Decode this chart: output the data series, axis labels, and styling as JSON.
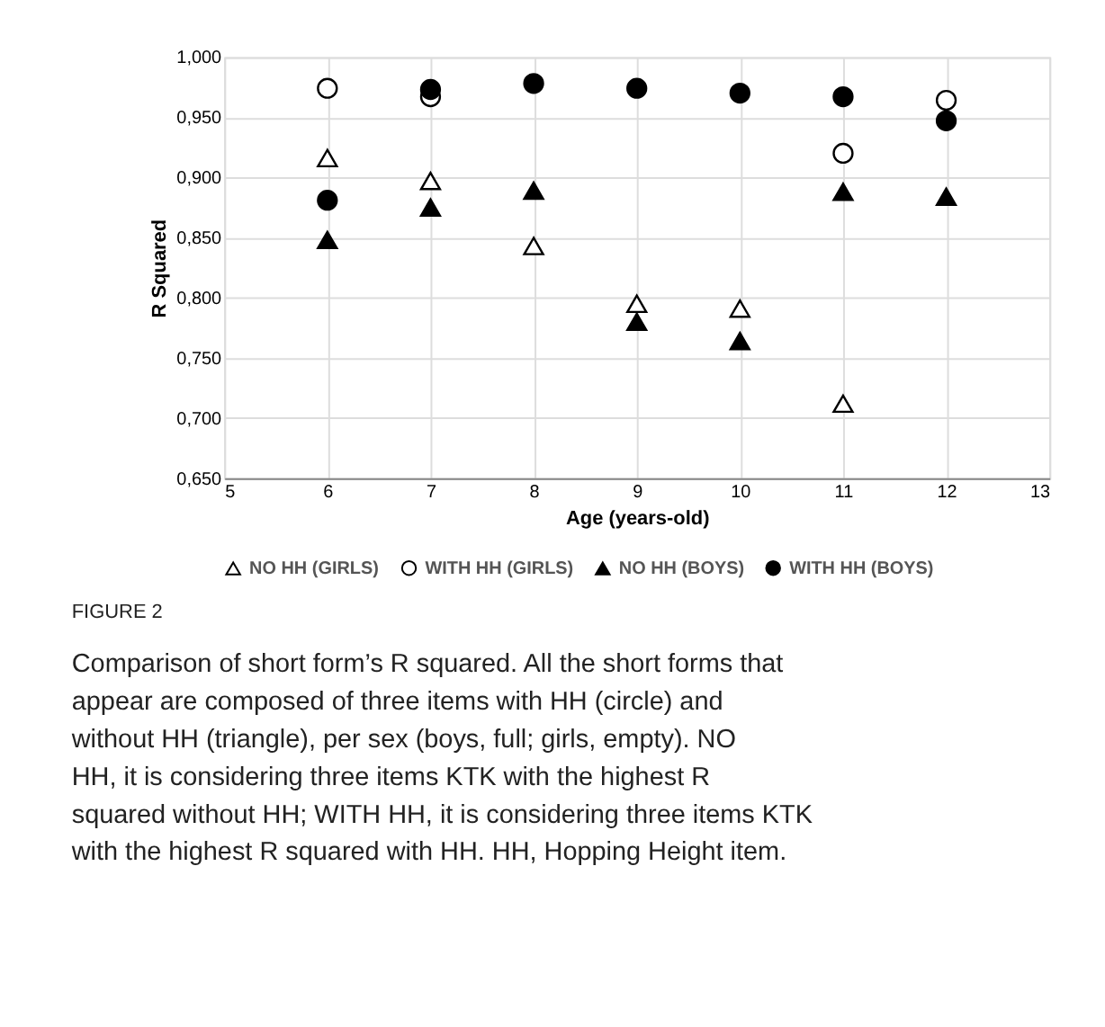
{
  "chart_data": {
    "type": "scatter",
    "xlabel": "Age (years-old)",
    "ylabel": "R Squared",
    "x": [
      6,
      7,
      8,
      9,
      10,
      11,
      12
    ],
    "series": [
      {
        "name": "NO HH (GIRLS)",
        "color": "#ffffff",
        "marker": "triangle",
        "values": [
          0.916,
          0.897,
          0.843,
          0.795,
          0.791,
          0.712,
          null
        ]
      },
      {
        "name": "WITH HH (GIRLS)",
        "color": "#ffffff",
        "marker": "circle",
        "values": [
          0.974,
          0.967,
          null,
          null,
          null,
          0.92,
          0.964
        ]
      },
      {
        "name": "NO HH (BOYS)",
        "color": "#000000",
        "marker": "triangle",
        "values": [
          0.848,
          0.875,
          0.889,
          0.78,
          0.764,
          0.888,
          0.884
        ]
      },
      {
        "name": "WITH HH (BOYS)",
        "color": "#000000",
        "marker": "circle",
        "values": [
          0.881,
          0.973,
          0.978,
          0.974,
          0.97,
          0.967,
          0.947
        ]
      }
    ],
    "xlim": [
      5,
      13
    ],
    "xticks": [
      5,
      6,
      7,
      8,
      9,
      10,
      11,
      12,
      13
    ],
    "ylim": [
      0.65,
      1.0
    ],
    "yticks": [
      {
        "value": 0.65,
        "label": "0,650"
      },
      {
        "value": 0.7,
        "label": "0,700"
      },
      {
        "value": 0.75,
        "label": "0,750"
      },
      {
        "value": 0.8,
        "label": "0,800"
      },
      {
        "value": 0.85,
        "label": "0,850"
      },
      {
        "value": 0.9,
        "label": "0,900"
      },
      {
        "value": 0.95,
        "label": "0,950"
      },
      {
        "value": 1.0,
        "label": "1,000"
      }
    ],
    "grid": true,
    "legend": "bottom",
    "annotations": [
      "FIGURE 2",
      "Comparison of short form’s R squared. All the short forms that appear are composed of three items with HH (circle) and without HH (triangle), per sex (boys, full; girls, empty). NO HH, it is considering three items KTK with the highest R squared without HH; WITH HH, it is considering three items KTK with the highest R squared with HH. HH, Hopping Height item."
    ]
  }
}
